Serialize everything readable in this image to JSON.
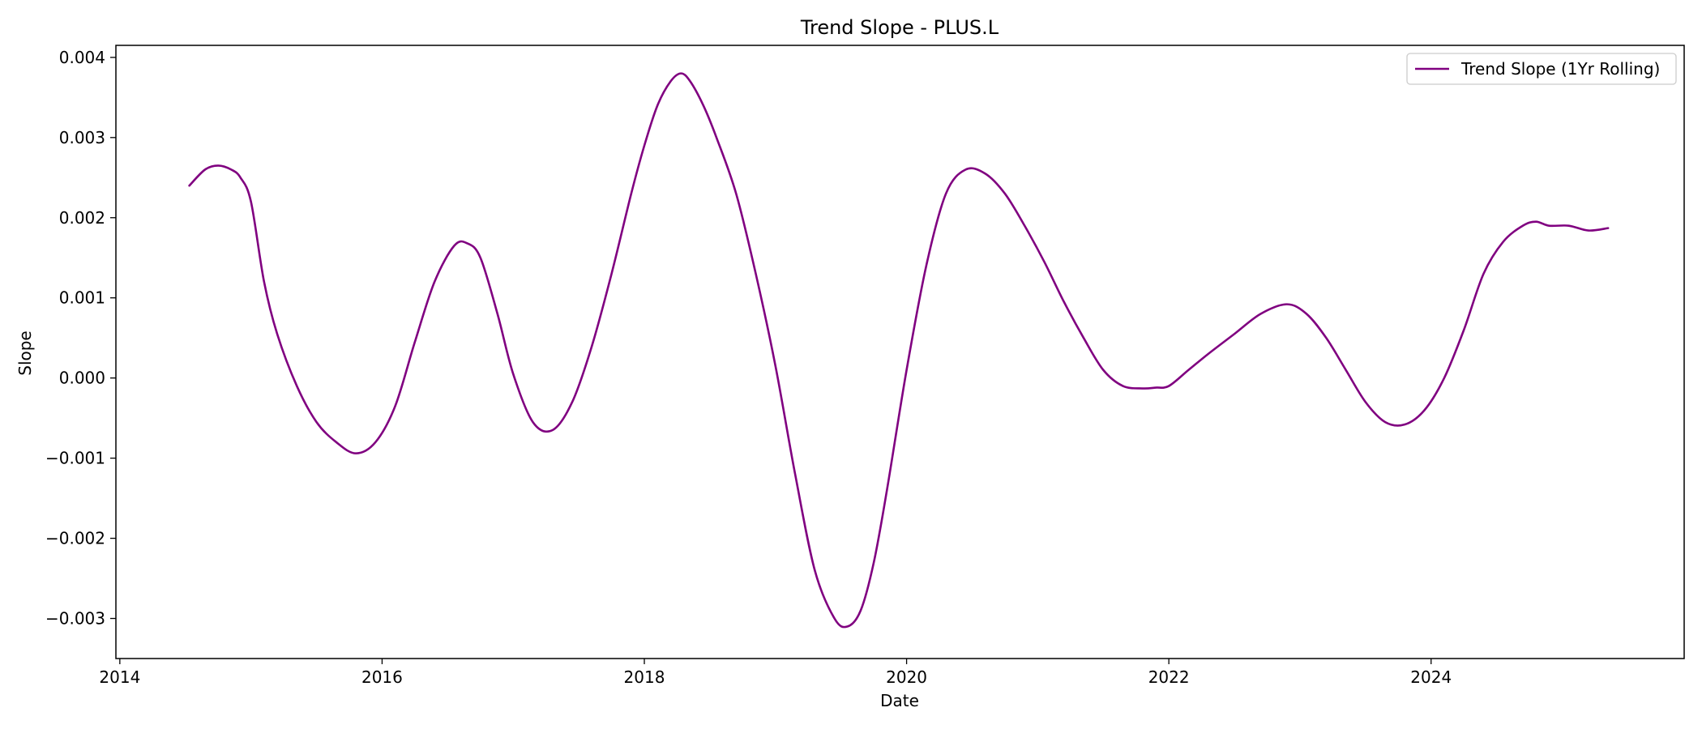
{
  "chart_data": {
    "type": "line",
    "title": "Trend Slope - PLUS.L",
    "xlabel": "Date",
    "ylabel": "Slope",
    "xlim": [
      2013.97,
      2025.93
    ],
    "ylim": [
      -0.0035,
      0.00415
    ],
    "x_ticks": [
      2014,
      2016,
      2018,
      2020,
      2022,
      2024
    ],
    "x_tick_labels": [
      "2014",
      "2016",
      "2018",
      "2020",
      "2022",
      "2024"
    ],
    "y_ticks": [
      -0.003,
      -0.002,
      -0.001,
      0.0,
      0.001,
      0.002,
      0.003,
      0.004
    ],
    "y_tick_labels": [
      "−0.003",
      "−0.002",
      "−0.001",
      "0.000",
      "0.001",
      "0.002",
      "0.003",
      "0.004"
    ],
    "grid": false,
    "legend_position": "top-right",
    "series": [
      {
        "name": "Trend Slope (1Yr Rolling)",
        "color": "#800080",
        "x": [
          2014.53,
          2014.65,
          2014.75,
          2014.85,
          2014.92,
          2015.0,
          2015.1,
          2015.2,
          2015.35,
          2015.5,
          2015.65,
          2015.8,
          2015.95,
          2016.1,
          2016.25,
          2016.4,
          2016.55,
          2016.65,
          2016.75,
          2016.88,
          2017.0,
          2017.15,
          2017.3,
          2017.45,
          2017.6,
          2017.75,
          2017.9,
          2018.0,
          2018.1,
          2018.2,
          2018.28,
          2018.35,
          2018.45,
          2018.55,
          2018.7,
          2018.85,
          2019.0,
          2019.15,
          2019.3,
          2019.45,
          2019.55,
          2019.65,
          2019.75,
          2019.85,
          2020.0,
          2020.15,
          2020.3,
          2020.45,
          2020.6,
          2020.75,
          2020.9,
          2021.05,
          2021.2,
          2021.35,
          2021.5,
          2021.65,
          2021.8,
          2021.9,
          2022.0,
          2022.15,
          2022.3,
          2022.5,
          2022.7,
          2022.9,
          2023.05,
          2023.2,
          2023.35,
          2023.5,
          2023.65,
          2023.8,
          2023.95,
          2024.1,
          2024.25,
          2024.4,
          2024.55,
          2024.7,
          2024.8,
          2024.9,
          2025.05,
          2025.2,
          2025.35
        ],
        "y": [
          0.0024,
          0.0026,
          0.00265,
          0.0026,
          0.0025,
          0.0022,
          0.0012,
          0.00055,
          -0.0001,
          -0.00055,
          -0.0008,
          -0.00094,
          -0.0008,
          -0.00035,
          0.00045,
          0.0012,
          0.00165,
          0.00168,
          0.0015,
          0.0008,
          5e-05,
          -0.00055,
          -0.00065,
          -0.0003,
          0.0004,
          0.0013,
          0.0023,
          0.0029,
          0.0034,
          0.0037,
          0.0038,
          0.0037,
          0.0034,
          0.003,
          0.0023,
          0.0013,
          0.00015,
          -0.0012,
          -0.0024,
          -0.003,
          -0.0031,
          -0.0029,
          -0.0023,
          -0.0014,
          0.0001,
          0.0014,
          0.0023,
          0.0026,
          0.00255,
          0.0023,
          0.0019,
          0.00145,
          0.00095,
          0.0005,
          0.0001,
          -0.0001,
          -0.00013,
          -0.00012,
          -0.0001,
          0.0001,
          0.0003,
          0.00055,
          0.0008,
          0.00092,
          0.0008,
          0.0005,
          0.0001,
          -0.0003,
          -0.00055,
          -0.00058,
          -0.0004,
          0.0,
          0.0006,
          0.0013,
          0.0017,
          0.0019,
          0.00195,
          0.0019,
          0.0019,
          0.00184,
          0.00187
        ]
      }
    ]
  }
}
